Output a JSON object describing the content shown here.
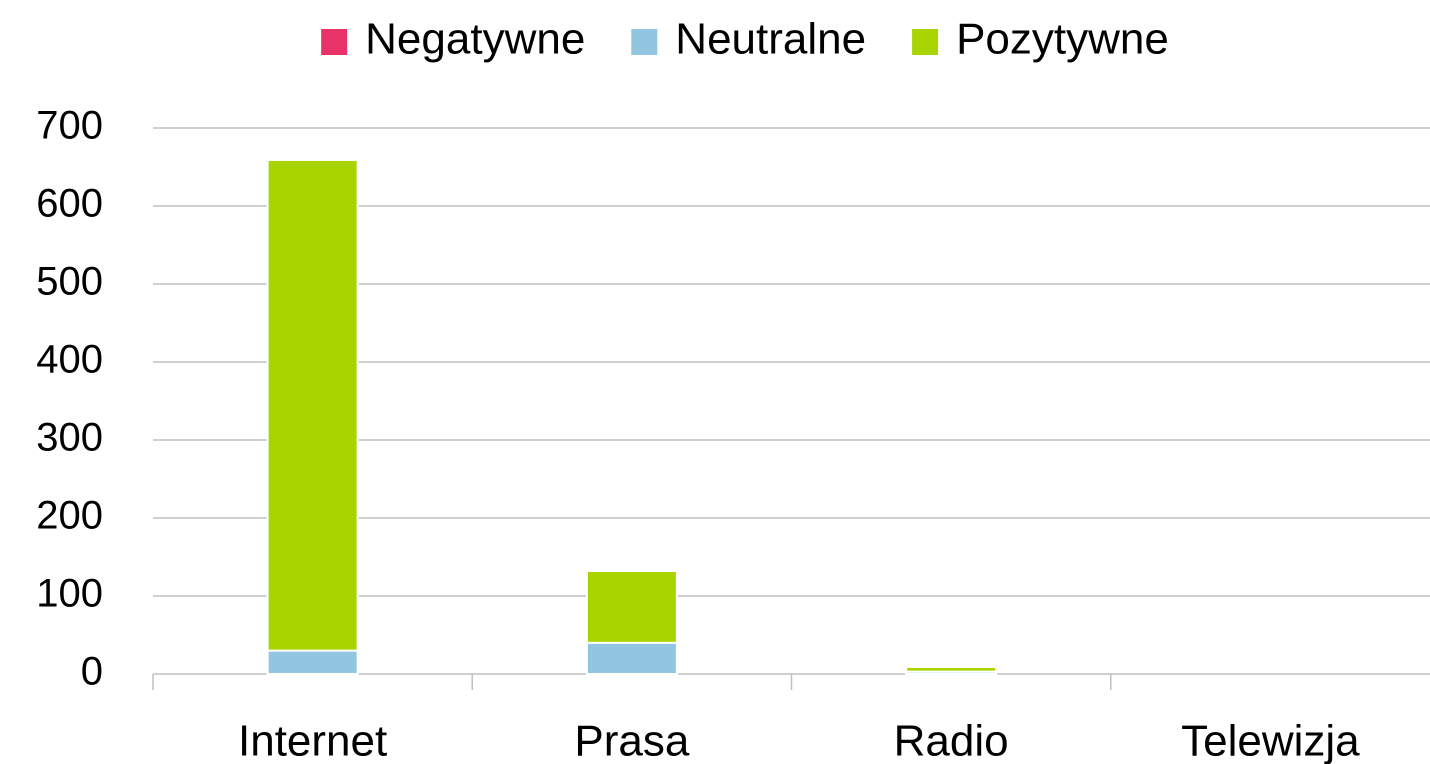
{
  "chart_data": {
    "type": "stacked_bar",
    "categories": [
      "Internet",
      "Prasa",
      "Radio",
      "Telewizja"
    ],
    "series": [
      {
        "name": "Negatywne",
        "color": "#e8336a",
        "values": [
          0,
          0,
          0,
          0
        ]
      },
      {
        "name": "Neutralne",
        "color": "#92c5e0",
        "values": [
          30,
          40,
          3,
          0
        ]
      },
      {
        "name": "Pozytywne",
        "color": "#a8d400",
        "values": [
          629,
          92,
          6,
          0
        ]
      }
    ],
    "ylim": [
      0,
      700
    ],
    "yticks": [
      0,
      100,
      200,
      300,
      400,
      500,
      600,
      700
    ],
    "grid": true,
    "legend": "top"
  }
}
